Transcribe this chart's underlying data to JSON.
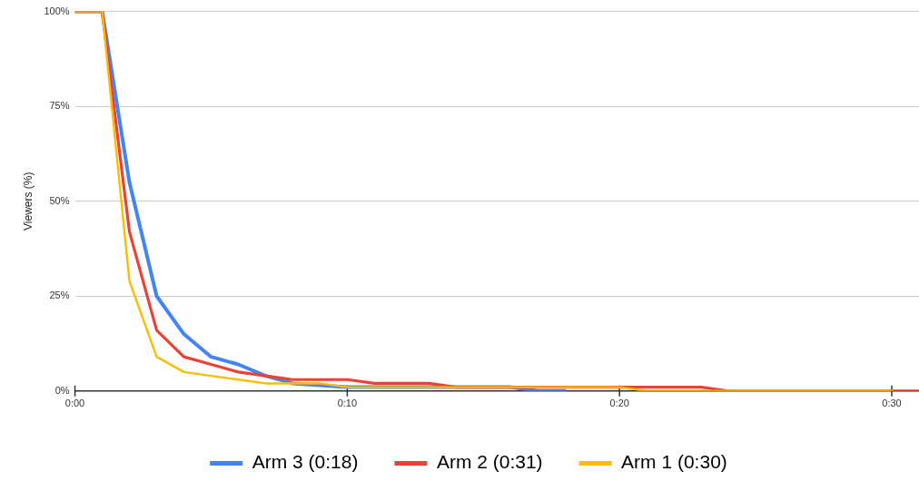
{
  "chart_data": {
    "type": "line",
    "ylabel": "Viewers (%)",
    "x": [
      0,
      1,
      2,
      3,
      4,
      5,
      6,
      7,
      8,
      9,
      10,
      11,
      12,
      13,
      14,
      15,
      16,
      17,
      18,
      19,
      20,
      21,
      22,
      23,
      24,
      25,
      26,
      27,
      28,
      29,
      30,
      31
    ],
    "series": [
      {
        "name": "Arm 3 (0:18)",
        "color": "#4285f4",
        "values": [
          100,
          100,
          55,
          25,
          15,
          9,
          7,
          4,
          2,
          1.5,
          1,
          1,
          1,
          1,
          1,
          1,
          1,
          0,
          0,
          null,
          null,
          null,
          null,
          null,
          null,
          null,
          null,
          null,
          null,
          null,
          null,
          null
        ]
      },
      {
        "name": "Arm 2 (0:31)",
        "color": "#ea4335",
        "values": [
          100,
          100,
          42,
          16,
          9,
          7,
          5,
          4,
          3,
          3,
          3,
          2,
          2,
          2,
          1,
          1,
          1,
          1,
          1,
          1,
          1,
          1,
          1,
          1,
          0,
          0,
          0,
          0,
          0,
          0,
          0,
          0
        ]
      },
      {
        "name": "Arm 1 (0:30)",
        "color": "#fbbc04",
        "values": [
          100,
          100,
          29,
          9,
          5,
          4,
          3,
          2,
          2,
          2,
          1,
          1,
          1,
          1,
          1,
          1,
          1,
          1,
          1,
          1,
          1,
          0,
          0,
          0,
          0,
          0,
          0,
          0,
          0,
          0,
          0,
          null
        ]
      }
    ],
    "xlim": [
      0,
      31
    ],
    "xticks": [
      {
        "value": 0,
        "label": "0:00"
      },
      {
        "value": 10,
        "label": "0:10"
      },
      {
        "value": 20,
        "label": "0:20"
      },
      {
        "value": 30,
        "label": "0:30"
      }
    ],
    "ylim": [
      0,
      100
    ],
    "yticks": [
      {
        "value": 0,
        "label": "0%"
      },
      {
        "value": 25,
        "label": "25%"
      },
      {
        "value": 50,
        "label": "50%"
      },
      {
        "value": 75,
        "label": "75%"
      },
      {
        "value": 100,
        "label": "100%"
      }
    ],
    "grid": "y",
    "legend": "bottom",
    "marker": "none",
    "line_style": "solid"
  }
}
